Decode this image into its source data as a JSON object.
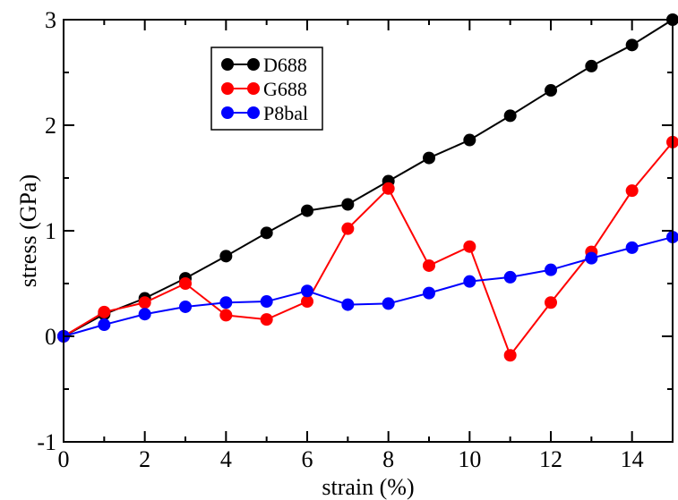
{
  "chart_data": {
    "type": "line",
    "title": "",
    "xlabel": "strain (%)",
    "ylabel": "stress (GPa)",
    "xlim": [
      0,
      15
    ],
    "ylim": [
      -1,
      3
    ],
    "x_ticks": [
      0,
      2,
      4,
      6,
      8,
      10,
      12,
      14
    ],
    "y_ticks": [
      -1,
      0,
      1,
      2,
      3
    ],
    "grid": false,
    "legend_position": "top-left",
    "x": [
      0,
      1,
      2,
      3,
      4,
      5,
      6,
      7,
      8,
      9,
      10,
      11,
      12,
      13,
      14,
      15
    ],
    "series": [
      {
        "name": "D688",
        "color": "#000000",
        "values": [
          0,
          0.21,
          0.36,
          0.55,
          0.76,
          0.98,
          1.19,
          1.25,
          1.47,
          1.69,
          1.86,
          2.09,
          2.33,
          2.56,
          2.76,
          3.0
        ]
      },
      {
        "name": "G688",
        "color": "#ff0000",
        "values": [
          0,
          0.23,
          0.32,
          0.5,
          0.2,
          0.16,
          0.33,
          1.02,
          1.4,
          0.67,
          0.85,
          -0.18,
          0.32,
          0.8,
          1.38,
          1.84
        ]
      },
      {
        "name": "P8bal",
        "color": "#0000ff",
        "values": [
          0,
          0.11,
          0.21,
          0.28,
          0.32,
          0.33,
          0.43,
          0.3,
          0.31,
          0.41,
          0.52,
          0.56,
          0.63,
          0.74,
          0.84,
          0.94
        ]
      }
    ]
  }
}
